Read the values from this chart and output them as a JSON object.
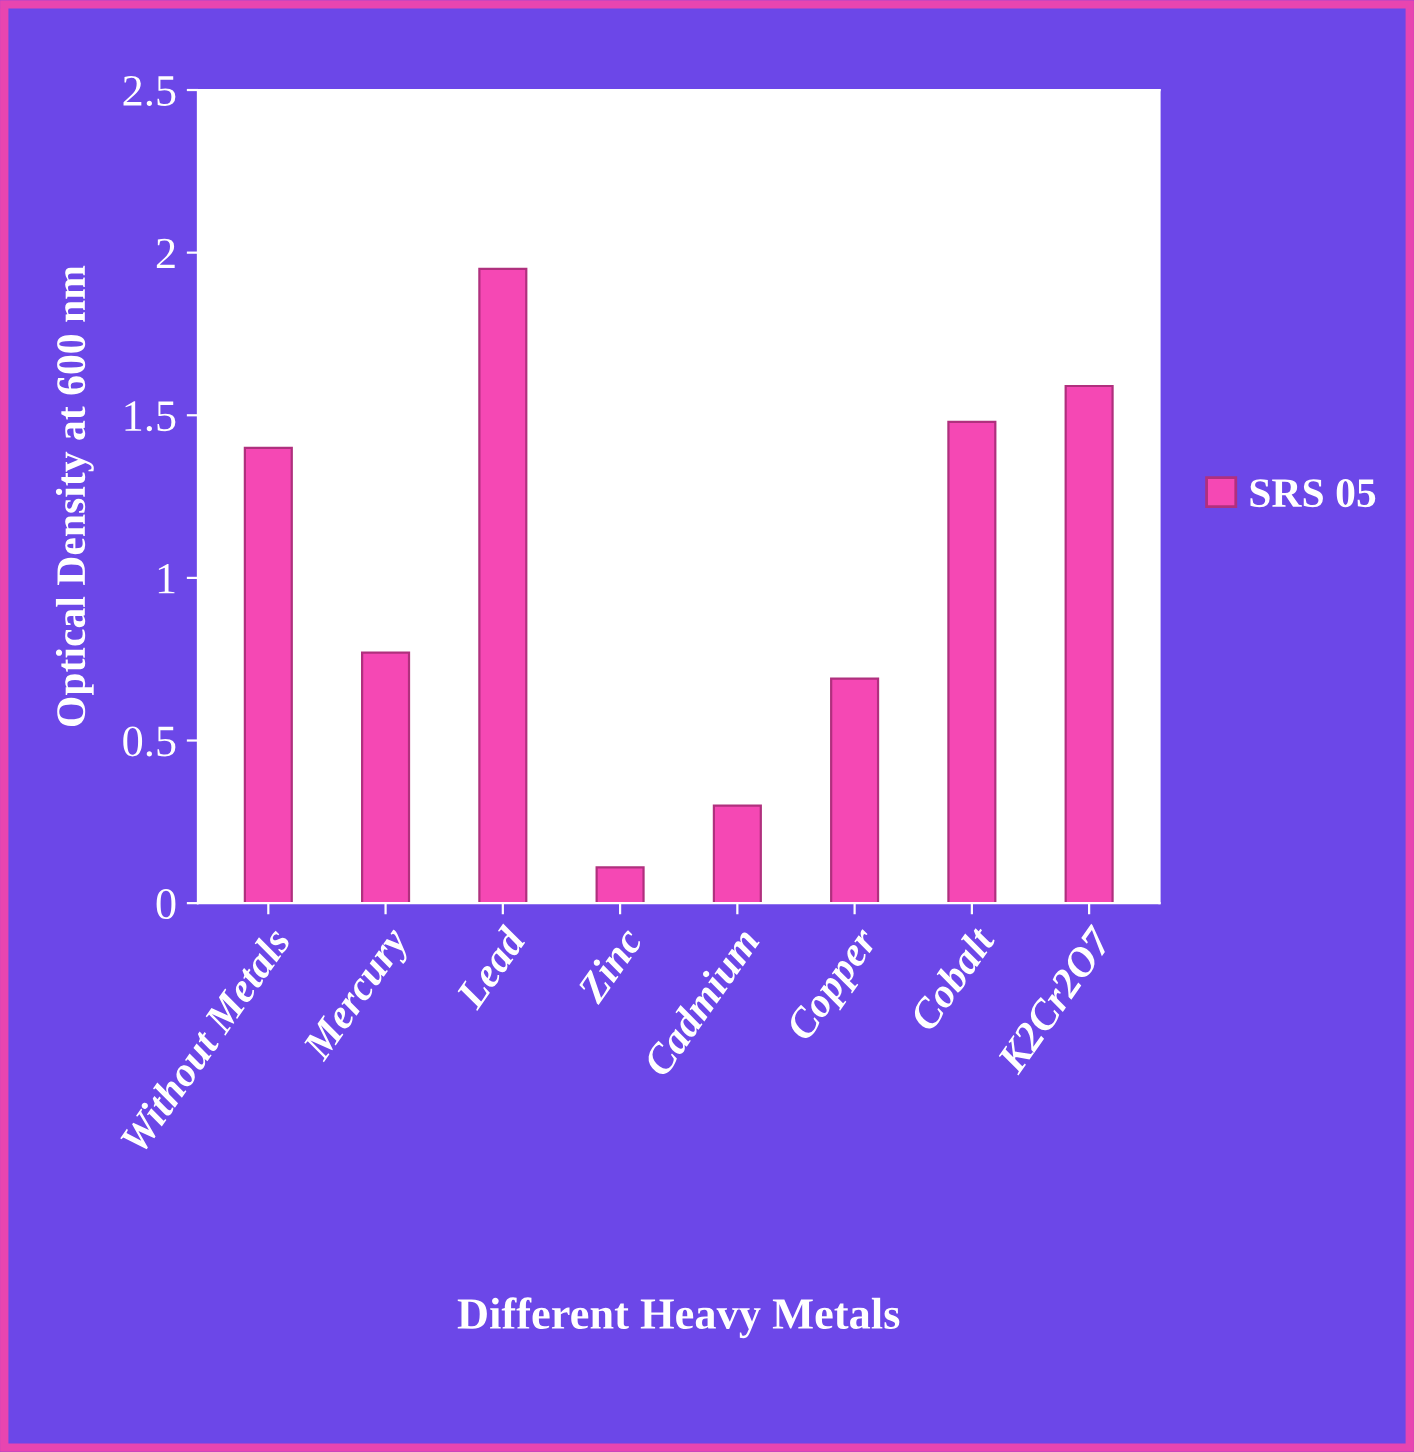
{
  "chart_data": {
    "type": "bar",
    "xlabel": "Different Heavy Metals",
    "ylabel": "Optical Density at 600 nm",
    "categories": [
      "Without Metals",
      "Mercury",
      "Lead",
      "Zinc",
      "Cadmium",
      "Copper",
      "Cobalt",
      "K2Cr2O7"
    ],
    "series": [
      {
        "name": "SRS 05",
        "color": "#f548b4",
        "values": [
          1.4,
          0.77,
          1.95,
          0.11,
          0.3,
          0.69,
          1.48,
          1.59
        ]
      }
    ],
    "ylim": [
      0,
      2.5
    ],
    "yticks": [
      0,
      0.5,
      1,
      1.5,
      2,
      2.5
    ],
    "grid": false,
    "legend": "right"
  }
}
